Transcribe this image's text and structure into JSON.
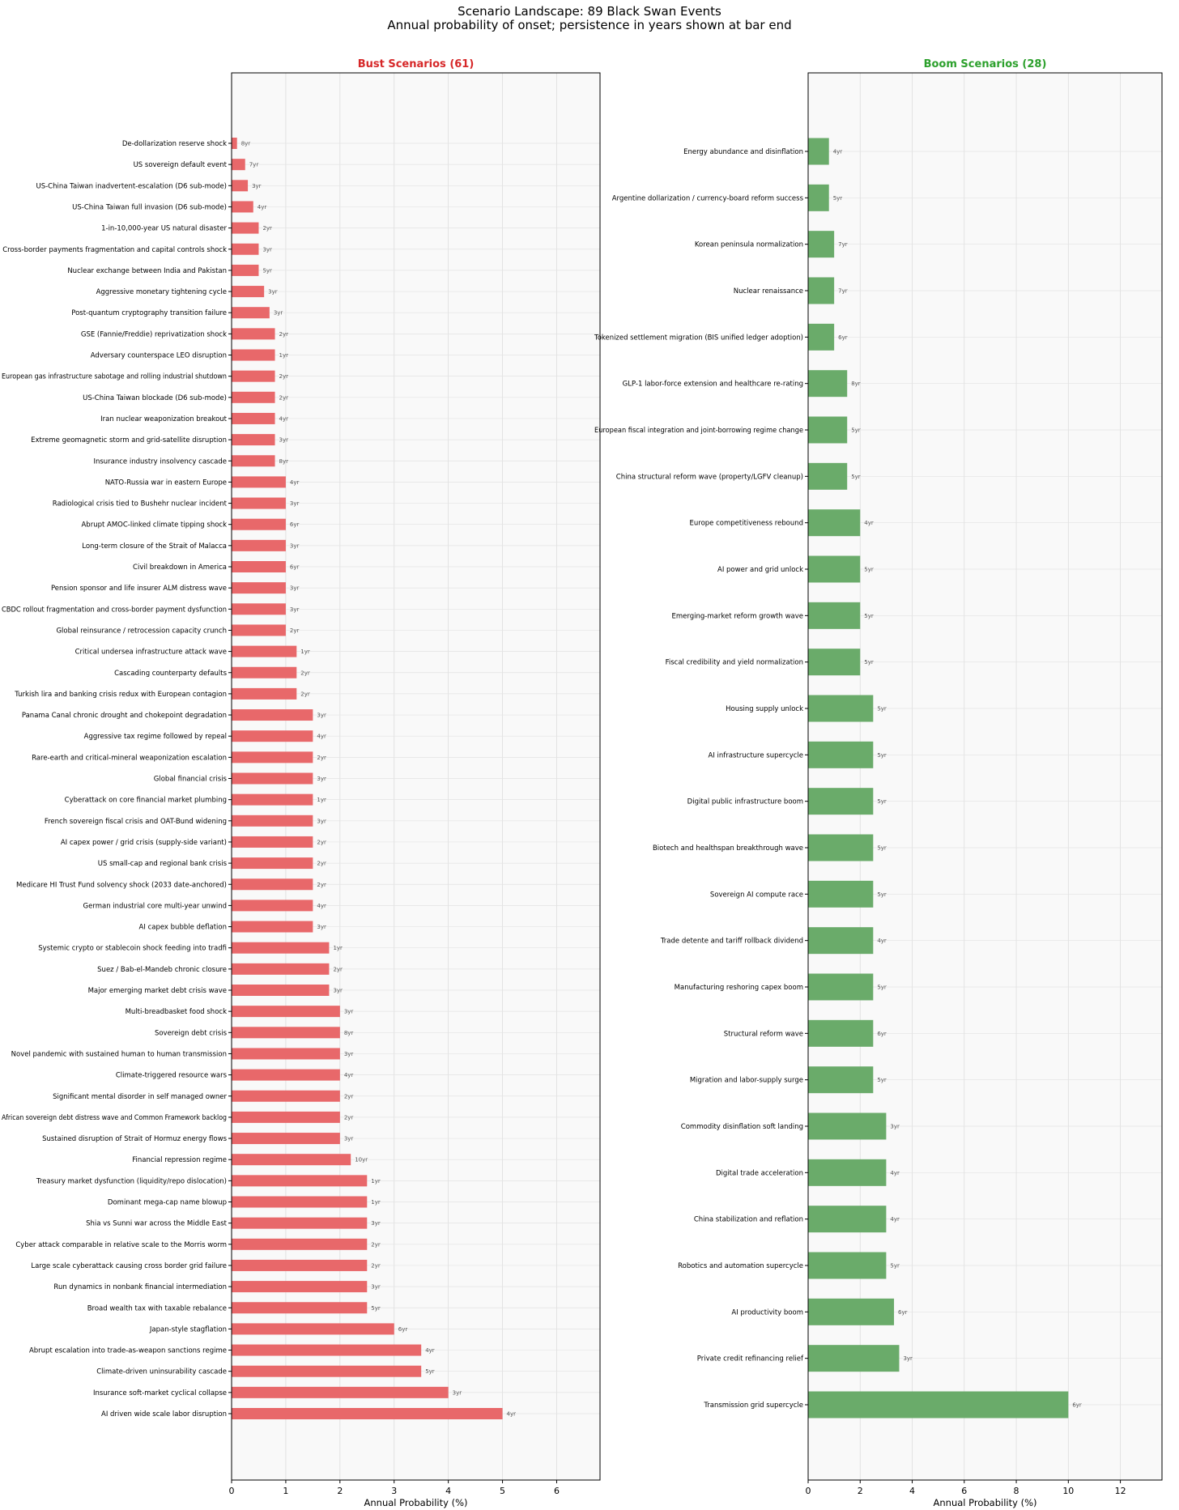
{
  "figure": {
    "title": "Scenario Landscape: 89 Black Swan Events",
    "subtitle": "Annual probability of onset; persistence in years shown at bar end"
  },
  "colors": {
    "bust": "#e8686a",
    "boom": "#6aab6a",
    "bust_title": "#d62728",
    "boom_title": "#2ca02c",
    "panel_bg": "#f9f9f9"
  },
  "chart_data": [
    {
      "type": "bar",
      "orientation": "horizontal",
      "title": "Bust Scenarios (61)",
      "xlabel": "Annual Probability (%)",
      "xlim": [
        0,
        6.8
      ],
      "xticks": [
        0,
        1,
        2,
        3,
        4,
        5,
        6
      ],
      "grid": true,
      "categories": [
        "De-dollarization reserve shock",
        "US sovereign default event",
        "US-China Taiwan inadvertent-escalation (D6 sub-mode)",
        "US-China Taiwan full invasion (D6 sub-mode)",
        "1-in-10,000-year US natural disaster",
        "Cross-border payments fragmentation and capital controls shock",
        "Nuclear exchange between India and Pakistan",
        "Aggressive monetary tightening cycle",
        "Post-quantum cryptography transition failure",
        "GSE (Fannie/Freddie) reprivatization shock",
        "Adversary counterspace LEO disruption",
        "European gas infrastructure sabotage and rolling industrial shutdown",
        "US-China Taiwan blockade (D6 sub-mode)",
        "Iran nuclear weaponization breakout",
        "Extreme geomagnetic storm and grid-satellite disruption",
        "Insurance industry insolvency cascade",
        "NATO-Russia war in eastern Europe",
        "Radiological crisis tied to Bushehr nuclear incident",
        "Abrupt AMOC-linked climate tipping shock",
        "Long-term closure of the Strait of Malacca",
        "Civil breakdown in America",
        "Pension sponsor and life insurer ALM distress wave",
        "CBDC rollout fragmentation and cross-border payment dysfunction",
        "Global reinsurance / retrocession capacity crunch",
        "Critical undersea infrastructure attack wave",
        "Cascading counterparty defaults",
        "Turkish lira and banking crisis redux with European contagion",
        "Panama Canal chronic drought and chokepoint degradation",
        "Aggressive tax regime followed by repeal",
        "Rare-earth and critical-mineral weaponization escalation",
        "Global financial crisis",
        "Cyberattack on core financial market plumbing",
        "French sovereign fiscal crisis and OAT-Bund widening",
        "AI capex power / grid crisis (supply-side variant)",
        "US small-cap and regional bank crisis",
        "Medicare HI Trust Fund solvency shock (2033 date-anchored)",
        "German industrial core multi-year unwind",
        "AI capex bubble deflation",
        "Systemic crypto or stablecoin shock feeding into tradfi",
        "Suez / Bab-el-Mandeb chronic closure",
        "Major emerging market debt crisis wave",
        "Multi-breadbasket food shock",
        "Sovereign debt crisis",
        "Novel pandemic with sustained human to human transmission",
        "Climate-triggered resource wars",
        "Significant mental disorder in self managed owner",
        "African sovereign debt distress wave and Common Framework backlog",
        "Sustained disruption of Strait of Hormuz energy flows",
        "Financial repression regime",
        "Treasury market dysfunction (liquidity/repo dislocation)",
        "Dominant mega-cap name blowup",
        "Shia vs Sunni war across the Middle East",
        "Cyber attack comparable in relative scale to the Morris worm",
        "Large scale cyberattack causing cross border grid failure",
        "Run dynamics in nonbank financial intermediation",
        "Broad wealth tax with taxable rebalance",
        "Japan-style stagflation",
        "Abrupt escalation into trade-as-weapon sanctions regime",
        "Climate-driven uninsurability cascade",
        "Insurance soft-market cyclical collapse",
        "AI driven wide scale labor disruption"
      ],
      "values": [
        0.1,
        0.25,
        0.3,
        0.4,
        0.5,
        0.5,
        0.5,
        0.6,
        0.7,
        0.8,
        0.8,
        0.8,
        0.8,
        0.8,
        0.8,
        0.8,
        1,
        1,
        1,
        1,
        1,
        1,
        1,
        1,
        1.2,
        1.2,
        1.2,
        1.5,
        1.5,
        1.5,
        1.5,
        1.5,
        1.5,
        1.5,
        1.5,
        1.5,
        1.5,
        1.5,
        1.8,
        1.8,
        1.8,
        2,
        2,
        2,
        2,
        2,
        2,
        2,
        2.2,
        2.5,
        2.5,
        2.5,
        2.5,
        2.5,
        2.5,
        2.5,
        3,
        3.5,
        3.5,
        4,
        5
      ],
      "persistence_labels": [
        "8yr",
        "7yr",
        "3yr",
        "4yr",
        "2yr",
        "3yr",
        "5yr",
        "3yr",
        "3yr",
        "2yr",
        "1yr",
        "2yr",
        "2yr",
        "4yr",
        "3yr",
        "8yr",
        "4yr",
        "3yr",
        "6yr",
        "3yr",
        "6yr",
        "3yr",
        "3yr",
        "2yr",
        "1yr",
        "2yr",
        "2yr",
        "3yr",
        "4yr",
        "2yr",
        "3yr",
        "1yr",
        "3yr",
        "2yr",
        "2yr",
        "2yr",
        "4yr",
        "3yr",
        "1yr",
        "2yr",
        "3yr",
        "3yr",
        "8yr",
        "3yr",
        "4yr",
        "2yr",
        "2yr",
        "3yr",
        "10yr",
        "1yr",
        "1yr",
        "3yr",
        "2yr",
        "2yr",
        "3yr",
        "5yr",
        "6yr",
        "4yr",
        "5yr",
        "3yr",
        "4yr"
      ]
    },
    {
      "type": "bar",
      "orientation": "horizontal",
      "title": "Boom Scenarios (28)",
      "xlabel": "Annual Probability (%)",
      "xlim": [
        0,
        13.6
      ],
      "xticks": [
        0,
        2,
        4,
        6,
        8,
        10,
        12
      ],
      "grid": true,
      "categories": [
        "Energy abundance and disinflation",
        "Argentine dollarization / currency-board reform success",
        "Korean peninsula normalization",
        "Nuclear renaissance",
        "Tokenized settlement migration (BIS unified ledger adoption)",
        "GLP-1 labor-force extension and healthcare re-rating",
        "European fiscal integration and joint-borrowing regime change",
        "China structural reform wave (property/LGFV cleanup)",
        "Europe competitiveness rebound",
        "AI power and grid unlock",
        "Emerging-market reform growth wave",
        "Fiscal credibility and yield normalization",
        "Housing supply unlock",
        "AI infrastructure supercycle",
        "Digital public infrastructure boom",
        "Biotech and healthspan breakthrough wave",
        "Sovereign AI compute race",
        "Trade detente and tariff rollback dividend",
        "Manufacturing reshoring capex boom",
        "Structural reform wave",
        "Migration and labor-supply surge",
        "Commodity disinflation soft landing",
        "Digital trade acceleration",
        "China stabilization and reflation",
        "Robotics and automation supercycle",
        "AI productivity boom",
        "Private credit refinancing relief",
        "Transmission grid supercycle"
      ],
      "values": [
        0.8,
        0.8,
        1,
        1,
        1,
        1.5,
        1.5,
        1.5,
        2,
        2,
        2,
        2,
        2.5,
        2.5,
        2.5,
        2.5,
        2.5,
        2.5,
        2.5,
        2.5,
        2.5,
        3,
        3,
        3,
        3,
        3.3,
        3.5,
        10
      ],
      "persistence_labels": [
        "4yr",
        "5yr",
        "7yr",
        "7yr",
        "6yr",
        "8yr",
        "5yr",
        "5yr",
        "4yr",
        "5yr",
        "5yr",
        "5yr",
        "5yr",
        "5yr",
        "5yr",
        "5yr",
        "5yr",
        "4yr",
        "5yr",
        "6yr",
        "5yr",
        "3yr",
        "4yr",
        "4yr",
        "5yr",
        "6yr",
        "3yr",
        "6yr"
      ]
    }
  ]
}
